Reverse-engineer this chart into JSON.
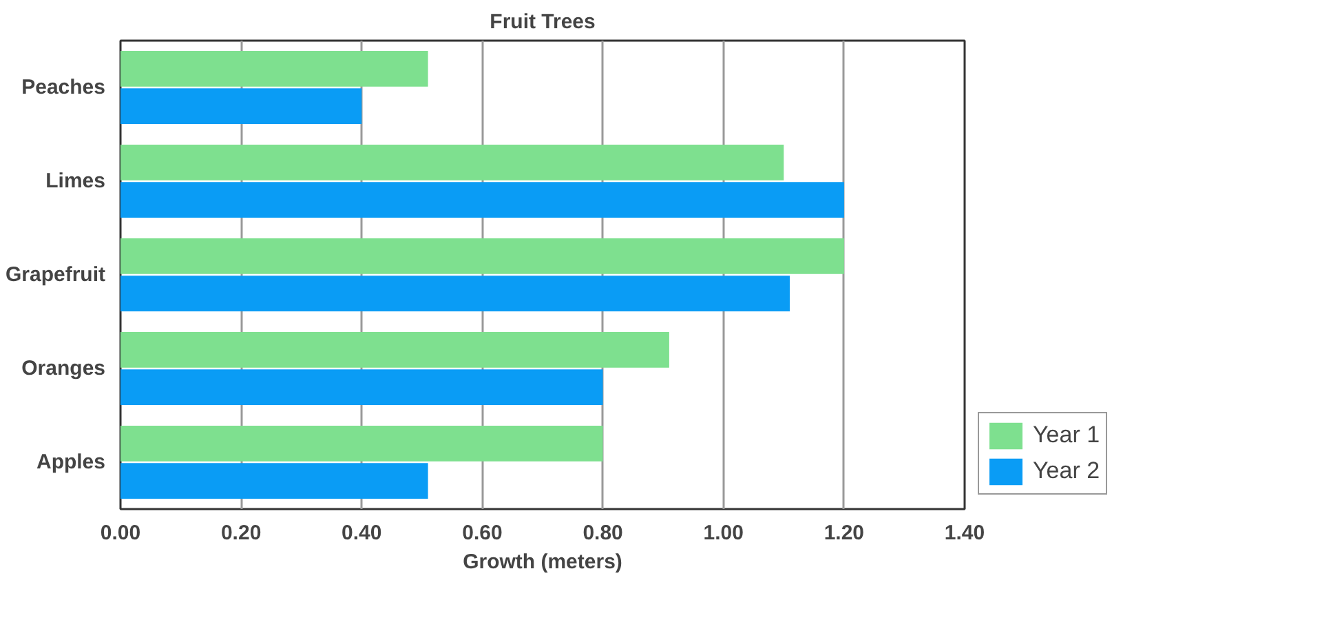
{
  "chart_data": {
    "type": "bar",
    "orientation": "horizontal",
    "title": "Fruit Trees",
    "xlabel": "Growth (meters)",
    "categories": [
      "Peaches",
      "Limes",
      "Grapefruit",
      "Oranges",
      "Apples"
    ],
    "series": [
      {
        "name": "Year 1",
        "color": "#7ee08f",
        "values": [
          0.51,
          1.1,
          1.2,
          0.91,
          0.8
        ]
      },
      {
        "name": "Year 2",
        "color": "#0a9cf5",
        "values": [
          0.4,
          1.2,
          1.11,
          0.8,
          0.51
        ]
      }
    ],
    "xlim": [
      0,
      1.4
    ],
    "xticks": [
      {
        "value": 0,
        "label": "0.00"
      },
      {
        "value": 0.2,
        "label": "0.20"
      },
      {
        "value": 0.4,
        "label": "0.40"
      },
      {
        "value": 0.6,
        "label": "0.60"
      },
      {
        "value": 0.8,
        "label": "0.80"
      },
      {
        "value": 1.0,
        "label": "1.00"
      },
      {
        "value": 1.2,
        "label": "1.20"
      },
      {
        "value": 1.4,
        "label": "1.40"
      }
    ],
    "grid": "x",
    "legend": "bottom right"
  }
}
